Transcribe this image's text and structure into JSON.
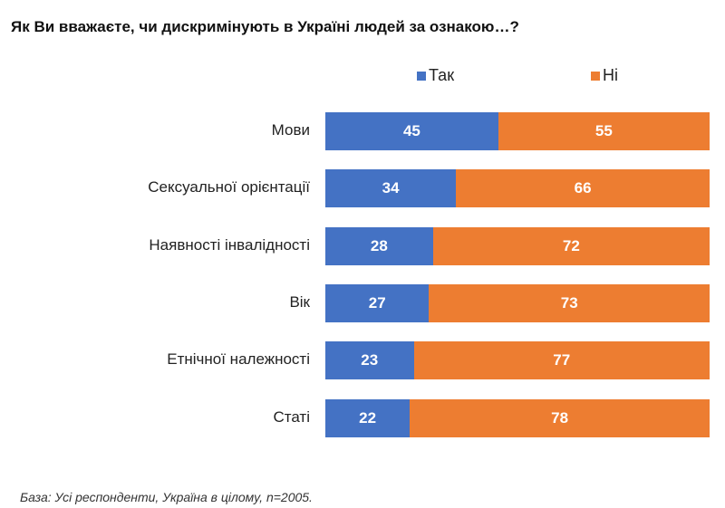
{
  "chart_data": {
    "type": "bar",
    "orientation": "horizontal",
    "stacked": true,
    "title": "Як Ви вважаєте, чи дискримінують в Україні людей за ознакою…?",
    "categories": [
      "Мови",
      "Сексуальної орієнтації",
      "Наявності інвалідності",
      "Вік",
      "Етнічної належності",
      "Статі"
    ],
    "series": [
      {
        "name": "Так",
        "color": "#4472C4",
        "values": [
          45,
          34,
          28,
          27,
          23,
          22
        ]
      },
      {
        "name": "Ні",
        "color": "#ED7D31",
        "values": [
          55,
          66,
          72,
          73,
          77,
          78
        ]
      }
    ],
    "xlim": [
      0,
      100
    ],
    "legend": "top",
    "grid": false,
    "footnote": "База: Усі респонденти, Україна в цілому, n=2005."
  }
}
